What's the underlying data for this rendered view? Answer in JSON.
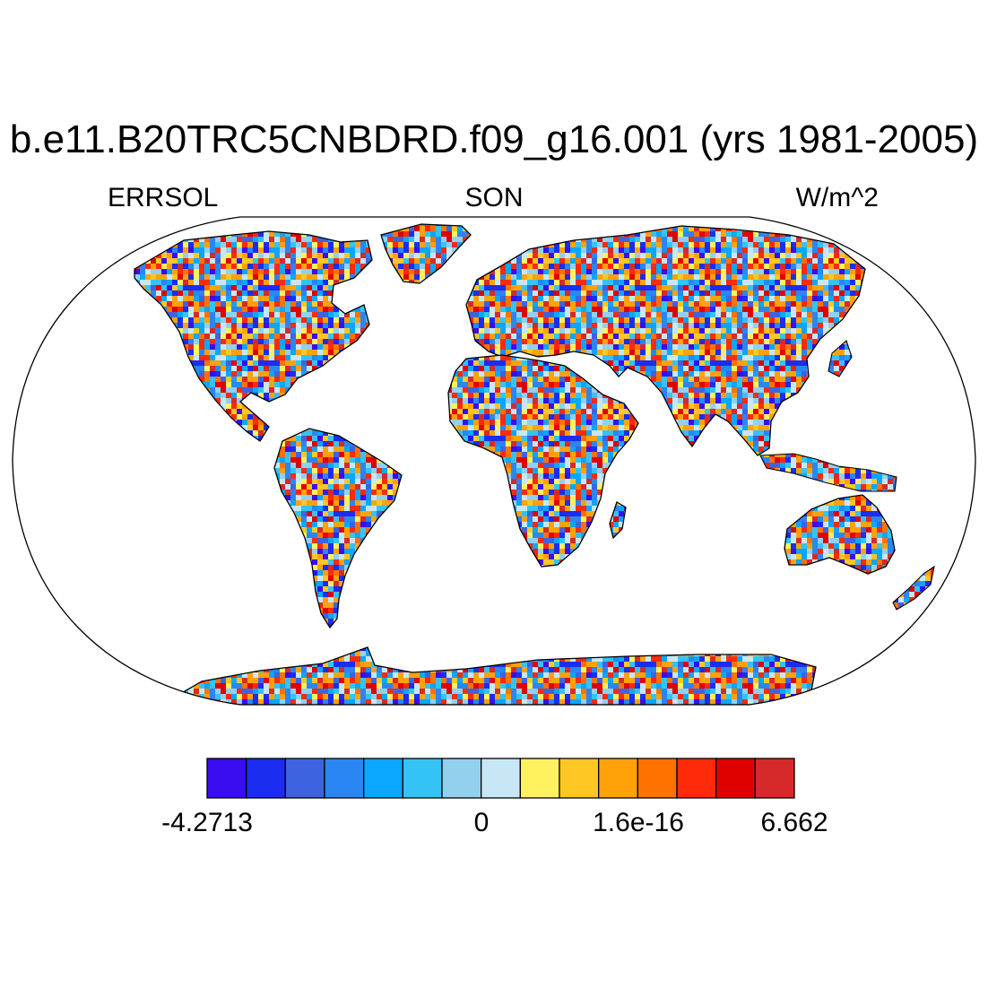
{
  "title": "b.e11.B20TRC5CNBDRD.f09_g16.001 (yrs 1981-2005)",
  "left_string": "ERRSOL",
  "center_string": "SON",
  "right_string": "W/m^2",
  "map": {
    "projection": "Robinson",
    "field": "ERRSOL",
    "pattern": "noisy field over land, white over ocean"
  },
  "colorbar": {
    "colors": [
      "#3a0cf0",
      "#1a2df0",
      "#3e63e0",
      "#2a86f2",
      "#0ba6ff",
      "#35c3f5",
      "#92d0ee",
      "#c8e7f6",
      "#fff160",
      "#ffc724",
      "#ffa20a",
      "#ff7200",
      "#ff2a0a",
      "#e00000",
      "#d62a2a"
    ],
    "labels": [
      "-4.2713",
      "0",
      "1.6e-16",
      "6.662"
    ]
  },
  "land_palette": [
    "#3a0cf0",
    "#1a2df0",
    "#3e63e0",
    "#2a86f2",
    "#0ba6ff",
    "#35c3f5",
    "#92d0ee",
    "#c8e7f6",
    "#fff160",
    "#ffc724",
    "#ffa20a",
    "#ff7200",
    "#ff2a0a",
    "#e00000",
    "#d62a2a"
  ]
}
